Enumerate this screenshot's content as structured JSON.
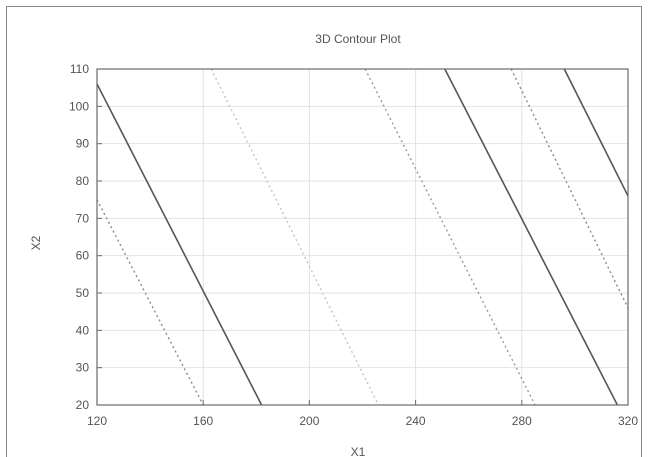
{
  "chart_data": {
    "type": "line",
    "title": "3D Contour Plot",
    "xlabel": "X1",
    "ylabel": "X2",
    "xlim": [
      120,
      320
    ],
    "ylim": [
      20,
      110
    ],
    "x_ticks": [
      "120",
      "160",
      "200",
      "240",
      "280",
      "320"
    ],
    "y_ticks": [
      "20",
      "30",
      "40",
      "50",
      "60",
      "70",
      "80",
      "90",
      "100",
      "110"
    ],
    "grid": true,
    "contours": [
      {
        "style": "dotted",
        "color": "#8a8a8a",
        "points": [
          [
            120,
            75
          ],
          [
            160,
            20
          ]
        ]
      },
      {
        "style": "solid",
        "color": "#555555",
        "points": [
          [
            120,
            106
          ],
          [
            182,
            20
          ]
        ]
      },
      {
        "style": "dotted",
        "color": "#c4c4c4",
        "points": [
          [
            163,
            110
          ],
          [
            226,
            20
          ]
        ]
      },
      {
        "style": "dotted",
        "color": "#9a9a9a",
        "points": [
          [
            221,
            110
          ],
          [
            285,
            20
          ]
        ]
      },
      {
        "style": "solid",
        "color": "#555555",
        "points": [
          [
            251,
            110
          ],
          [
            316,
            20
          ]
        ]
      },
      {
        "style": "dotted",
        "color": "#8a8a8a",
        "points": [
          [
            276,
            110
          ],
          [
            320,
            46
          ]
        ]
      },
      {
        "style": "solid",
        "color": "#555555",
        "points": [
          [
            296,
            110
          ],
          [
            320,
            76
          ]
        ]
      }
    ]
  }
}
